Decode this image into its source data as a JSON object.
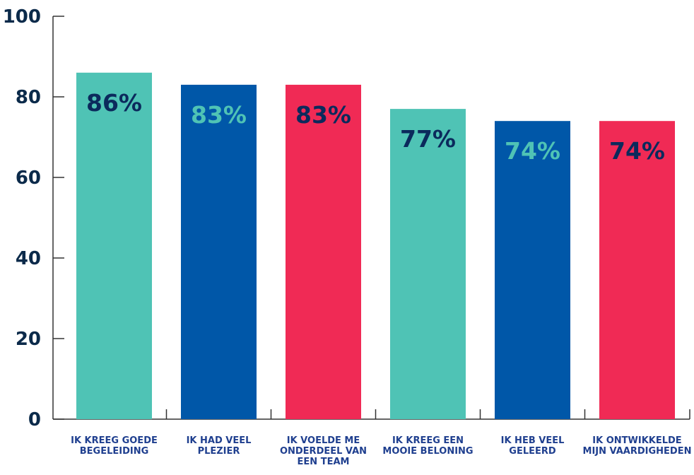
{
  "chart_data": {
    "type": "bar",
    "title": "",
    "xlabel": "",
    "ylabel": "",
    "ylim": [
      0,
      100
    ],
    "yticks": [
      "0",
      "20",
      "40",
      "60",
      "80",
      "100"
    ],
    "grid": false,
    "categories": [
      [
        "IK KREEG GOEDE",
        "BEGELEIDING"
      ],
      [
        "IK HAD VEEL",
        "PLEZIER"
      ],
      [
        "IK VOELDE ME",
        "ONDERDEEL VAN",
        "EEN TEAM"
      ],
      [
        "IK KREEG EEN",
        "MOOIE BELONING"
      ],
      [
        "IK HEB VEEL",
        "GELEERD"
      ],
      [
        "IK ONTWIKKELDE",
        "MIJN VAARDIGHEDEN"
      ]
    ],
    "values": [
      86,
      83,
      83,
      77,
      74,
      74
    ],
    "value_labels": [
      "86%",
      "83%",
      "83%",
      "77%",
      "74%",
      "74%"
    ],
    "bar_colors": [
      "#4fc3b5",
      "#0057a8",
      "#f02a55",
      "#4fc3b5",
      "#0057a8",
      "#f02a55"
    ],
    "label_colors": [
      "#0b2a5c",
      "#4fc3b5",
      "#0b2a5c",
      "#0b2a5c",
      "#4fc3b5",
      "#0b2a5c"
    ]
  }
}
